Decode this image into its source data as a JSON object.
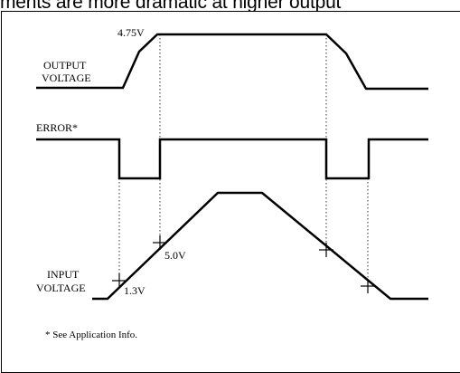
{
  "page": {
    "top_text_fragment": "ments are more dramatic at higher output"
  },
  "diagram": {
    "signals": {
      "output": {
        "label_line1": "OUTPUT",
        "label_line2": "VOLTAGE",
        "peak_value": "4.75V"
      },
      "error": {
        "label": "ERROR*"
      },
      "input": {
        "label_line1": "INPUT",
        "label_line2": "VOLTAGE",
        "point_low": "1.3V",
        "point_high": "5.0V"
      }
    },
    "footnote": "* See Application Info."
  }
}
